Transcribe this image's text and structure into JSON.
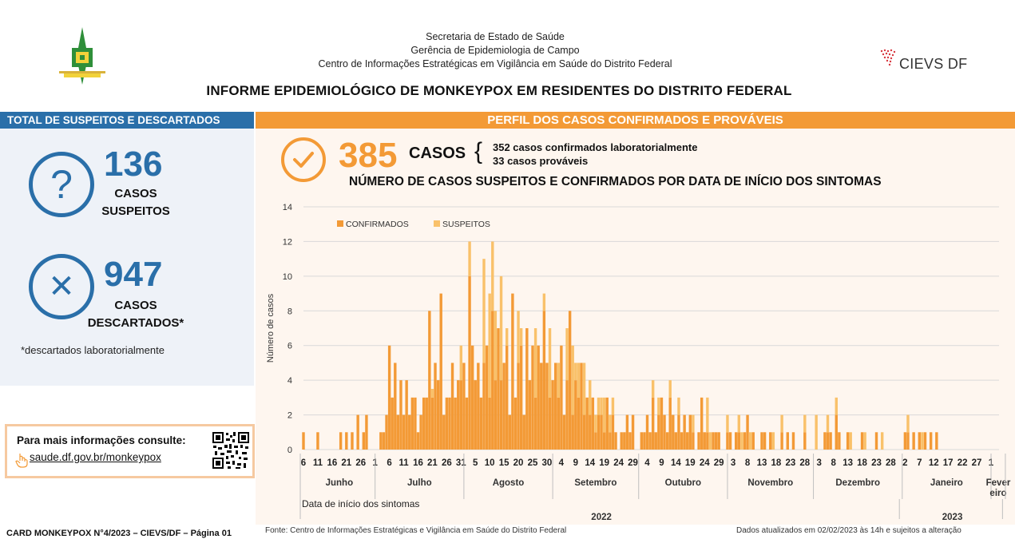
{
  "header": {
    "line1": "Secretaria de Estado de Saúde",
    "line2": "Gerência de Epidemiologia de Campo",
    "line3": "Centro de Informações Estratégicas em Vigilância em Saúde do Distrito Federal",
    "title": "INFORME EPIDEMIOLÓGICO DE MONKEYPOX EM RESIDENTES DO DISTRITO FEDERAL",
    "cievs_logo_text": "CIEVS DF"
  },
  "left": {
    "bar_title": "TOTAL DE SUSPEITOS E DESCARTADOS",
    "suspects_num": "136",
    "suspects_label1": "CASOS",
    "suspects_label2": "SUSPEITOS",
    "discarded_num": "947",
    "discarded_label1": "CASOS",
    "discarded_label2": "DESCARTADOS*",
    "footnote": "*descartados laboratorialmente",
    "question_glyph": "?",
    "x_glyph": "✕",
    "icons": [
      "question-circle-icon",
      "x-circle-icon",
      "hand-pointer-icon",
      "qr-code-icon"
    ]
  },
  "info": {
    "title": "Para mais informações consulte:",
    "link": "saude.df.gov.br/monkeypox"
  },
  "right": {
    "bar_title": "PERFIL DOS CASOS CONFIRMADOS E PROVÁVEIS",
    "cases_num": "385",
    "cases_word": "CASOS",
    "brace": "{",
    "line_confirmed": "352 casos confirmados laboratorialmente",
    "line_probable": "33 casos prováveis",
    "chart_title": "NÚMERO DE CASOS SUSPEITOS E CONFIRMADOS POR DATA DE INÍCIO DOS SINTOMAS"
  },
  "colors": {
    "blue": "#2a6fa9",
    "orange": "#f39a36",
    "confirmed": "#f39a36",
    "suspected": "#f9c16a"
  },
  "footer": {
    "left": "CARD MONKEYPOX N°4/2023 – CIEVS/DF – Página 01",
    "mid": "Fonte: Centro de Informações Estratégicas e Vigilância em Saúde do Distrito Federal",
    "right": "Dados atualizados em 02/02/2023 às 14h e sujeitos a alteração"
  },
  "chart_data": {
    "type": "bar",
    "stacked": true,
    "title": "NÚMERO DE CASOS SUSPEITOS E CONFIRMADOS POR DATA DE INÍCIO DOS SINTOMAS",
    "xlabel": "Data de início dos sintomas",
    "ylabel": "Número de casos",
    "ylim": [
      0,
      14
    ],
    "yticks": [
      0,
      2,
      4,
      6,
      8,
      10,
      12,
      14
    ],
    "grid": true,
    "legend_position": "top-left",
    "x_start": "2022-06-06",
    "x_end": "2023-02-01",
    "series": [
      {
        "name": "CONFIRMADOS",
        "color": "#f39a36",
        "points": [
          [
            "2022-06-06",
            1
          ],
          [
            "2022-06-11",
            1
          ],
          [
            "2022-06-19",
            1
          ],
          [
            "2022-06-21",
            1
          ],
          [
            "2022-06-23",
            1
          ],
          [
            "2022-06-25",
            2
          ],
          [
            "2022-06-27",
            1
          ],
          [
            "2022-06-28",
            2
          ],
          [
            "2022-07-03",
            1
          ],
          [
            "2022-07-04",
            1
          ],
          [
            "2022-07-05",
            2
          ],
          [
            "2022-07-06",
            6
          ],
          [
            "2022-07-07",
            3
          ],
          [
            "2022-07-08",
            5
          ],
          [
            "2022-07-09",
            2
          ],
          [
            "2022-07-10",
            4
          ],
          [
            "2022-07-11",
            2
          ],
          [
            "2022-07-12",
            4
          ],
          [
            "2022-07-13",
            2
          ],
          [
            "2022-07-14",
            3
          ],
          [
            "2022-07-15",
            3
          ],
          [
            "2022-07-16",
            1
          ],
          [
            "2022-07-17",
            2
          ],
          [
            "2022-07-18",
            3
          ],
          [
            "2022-07-19",
            3
          ],
          [
            "2022-07-20",
            8
          ],
          [
            "2022-07-21",
            3
          ],
          [
            "2022-07-22",
            5
          ],
          [
            "2022-07-23",
            4
          ],
          [
            "2022-07-24",
            9
          ],
          [
            "2022-07-25",
            2
          ],
          [
            "2022-07-26",
            3
          ],
          [
            "2022-07-27",
            3
          ],
          [
            "2022-07-28",
            5
          ],
          [
            "2022-07-29",
            3
          ],
          [
            "2022-07-30",
            4
          ],
          [
            "2022-07-31",
            4
          ],
          [
            "2022-08-01",
            5
          ],
          [
            "2022-08-02",
            3
          ],
          [
            "2022-08-03",
            10
          ],
          [
            "2022-08-04",
            6
          ],
          [
            "2022-08-05",
            4
          ],
          [
            "2022-08-06",
            5
          ],
          [
            "2022-08-07",
            3
          ],
          [
            "2022-08-08",
            5
          ],
          [
            "2022-08-09",
            6
          ],
          [
            "2022-08-10",
            3
          ],
          [
            "2022-08-11",
            8
          ],
          [
            "2022-08-12",
            4
          ],
          [
            "2022-08-13",
            7
          ],
          [
            "2022-08-14",
            4
          ],
          [
            "2022-08-15",
            5
          ],
          [
            "2022-08-16",
            6
          ],
          [
            "2022-08-17",
            2
          ],
          [
            "2022-08-18",
            9
          ],
          [
            "2022-08-19",
            3
          ],
          [
            "2022-08-20",
            5
          ],
          [
            "2022-08-21",
            6
          ],
          [
            "2022-08-22",
            2
          ],
          [
            "2022-08-23",
            7
          ],
          [
            "2022-08-24",
            4
          ],
          [
            "2022-08-25",
            6
          ],
          [
            "2022-08-26",
            3
          ],
          [
            "2022-08-27",
            6
          ],
          [
            "2022-08-28",
            5
          ],
          [
            "2022-08-29",
            8
          ],
          [
            "2022-08-30",
            5
          ],
          [
            "2022-08-31",
            3
          ],
          [
            "2022-09-01",
            4
          ],
          [
            "2022-09-02",
            5
          ],
          [
            "2022-09-03",
            3
          ],
          [
            "2022-09-04",
            6
          ],
          [
            "2022-09-05",
            2
          ],
          [
            "2022-09-06",
            4
          ],
          [
            "2022-09-07",
            8
          ],
          [
            "2022-09-08",
            2
          ],
          [
            "2022-09-09",
            4
          ],
          [
            "2022-09-10",
            3
          ],
          [
            "2022-09-11",
            5
          ],
          [
            "2022-09-12",
            2
          ],
          [
            "2022-09-13",
            3
          ],
          [
            "2022-09-14",
            2
          ],
          [
            "2022-09-15",
            3
          ],
          [
            "2022-09-16",
            1
          ],
          [
            "2022-09-17",
            2
          ],
          [
            "2022-09-18",
            2
          ],
          [
            "2022-09-19",
            1
          ],
          [
            "2022-09-20",
            3
          ],
          [
            "2022-09-21",
            1
          ],
          [
            "2022-09-22",
            2
          ],
          [
            "2022-09-23",
            1
          ],
          [
            "2022-09-25",
            1
          ],
          [
            "2022-09-26",
            1
          ],
          [
            "2022-09-27",
            2
          ],
          [
            "2022-09-28",
            1
          ],
          [
            "2022-09-29",
            2
          ],
          [
            "2022-10-02",
            1
          ],
          [
            "2022-10-03",
            1
          ],
          [
            "2022-10-04",
            2
          ],
          [
            "2022-10-05",
            1
          ],
          [
            "2022-10-06",
            3
          ],
          [
            "2022-10-07",
            1
          ],
          [
            "2022-10-08",
            2
          ],
          [
            "2022-10-09",
            3
          ],
          [
            "2022-10-10",
            2
          ],
          [
            "2022-10-11",
            1
          ],
          [
            "2022-10-12",
            3
          ],
          [
            "2022-10-13",
            2
          ],
          [
            "2022-10-14",
            1
          ],
          [
            "2022-10-15",
            2
          ],
          [
            "2022-10-16",
            1
          ],
          [
            "2022-10-17",
            2
          ],
          [
            "2022-10-18",
            1
          ],
          [
            "2022-10-19",
            2
          ],
          [
            "2022-10-20",
            1
          ],
          [
            "2022-10-22",
            1
          ],
          [
            "2022-10-23",
            3
          ],
          [
            "2022-10-24",
            1
          ],
          [
            "2022-10-25",
            1
          ],
          [
            "2022-10-27",
            1
          ],
          [
            "2022-10-28",
            1
          ],
          [
            "2022-10-29",
            1
          ],
          [
            "2022-11-01",
            1
          ],
          [
            "2022-11-02",
            1
          ],
          [
            "2022-11-04",
            1
          ],
          [
            "2022-11-05",
            1
          ],
          [
            "2022-11-07",
            1
          ],
          [
            "2022-11-08",
            2
          ],
          [
            "2022-11-10",
            1
          ],
          [
            "2022-11-13",
            1
          ],
          [
            "2022-11-14",
            1
          ],
          [
            "2022-11-16",
            1
          ],
          [
            "2022-11-20",
            1
          ],
          [
            "2022-11-22",
            1
          ],
          [
            "2022-11-24",
            1
          ],
          [
            "2022-11-28",
            1
          ],
          [
            "2022-12-05",
            1
          ],
          [
            "2022-12-06",
            1
          ],
          [
            "2022-12-07",
            1
          ],
          [
            "2022-12-09",
            2
          ],
          [
            "2022-12-10",
            1
          ],
          [
            "2022-12-13",
            1
          ],
          [
            "2022-12-18",
            1
          ],
          [
            "2022-12-23",
            1
          ],
          [
            "2023-01-02",
            1
          ],
          [
            "2023-01-03",
            1
          ],
          [
            "2023-01-05",
            1
          ],
          [
            "2023-01-07",
            1
          ],
          [
            "2023-01-09",
            1
          ],
          [
            "2023-01-11",
            1
          ],
          [
            "2023-01-13",
            1
          ]
        ]
      },
      {
        "name": "SUSPEITOS",
        "color": "#f9c16a",
        "points": [
          [
            "2022-07-21",
            0.5
          ],
          [
            "2022-07-31",
            2
          ],
          [
            "2022-08-03",
            2
          ],
          [
            "2022-08-08",
            6
          ],
          [
            "2022-08-10",
            6
          ],
          [
            "2022-08-11",
            4
          ],
          [
            "2022-08-12",
            4
          ],
          [
            "2022-08-14",
            6
          ],
          [
            "2022-08-16",
            1
          ],
          [
            "2022-08-20",
            3
          ],
          [
            "2022-08-21",
            1
          ],
          [
            "2022-08-26",
            4
          ],
          [
            "2022-08-29",
            1
          ],
          [
            "2022-08-31",
            4
          ],
          [
            "2022-09-03",
            2
          ],
          [
            "2022-09-06",
            3
          ],
          [
            "2022-09-08",
            4
          ],
          [
            "2022-09-09",
            1
          ],
          [
            "2022-09-10",
            2
          ],
          [
            "2022-09-11",
            0
          ],
          [
            "2022-09-12",
            3
          ],
          [
            "2022-09-14",
            2
          ],
          [
            "2022-09-16",
            1
          ],
          [
            "2022-09-17",
            1
          ],
          [
            "2022-09-18",
            1
          ],
          [
            "2022-09-19",
            2
          ],
          [
            "2022-09-21",
            1
          ],
          [
            "2022-09-22",
            1
          ],
          [
            "2022-10-06",
            1
          ],
          [
            "2022-10-08",
            1
          ],
          [
            "2022-10-12",
            1
          ],
          [
            "2022-10-15",
            1
          ],
          [
            "2022-10-20",
            1
          ],
          [
            "2022-10-25",
            2
          ],
          [
            "2022-10-26",
            1
          ],
          [
            "2022-11-01",
            1
          ],
          [
            "2022-11-05",
            1
          ],
          [
            "2022-11-06",
            1
          ],
          [
            "2022-11-09",
            1
          ],
          [
            "2022-11-17",
            1
          ],
          [
            "2022-11-20",
            1
          ],
          [
            "2022-11-28",
            1
          ],
          [
            "2022-12-02",
            2
          ],
          [
            "2022-12-06",
            1
          ],
          [
            "2022-12-09",
            1
          ],
          [
            "2022-12-14",
            1
          ],
          [
            "2022-12-19",
            1
          ],
          [
            "2022-12-25",
            1
          ],
          [
            "2023-01-03",
            1
          ],
          [
            "2023-01-08",
            1
          ]
        ]
      }
    ],
    "x_day_labels": [
      "6",
      "11",
      "16",
      "21",
      "26",
      "1",
      "6",
      "11",
      "16",
      "21",
      "26",
      "31",
      "5",
      "10",
      "15",
      "20",
      "25",
      "30",
      "4",
      "9",
      "14",
      "19",
      "24",
      "29",
      "4",
      "9",
      "14",
      "19",
      "24",
      "29",
      "3",
      "8",
      "13",
      "18",
      "23",
      "28",
      "3",
      "8",
      "13",
      "18",
      "23",
      "28",
      "2",
      "7",
      "12",
      "17",
      "22",
      "27",
      "1"
    ],
    "x_day_dates": [
      "2022-06-06",
      "2022-06-11",
      "2022-06-16",
      "2022-06-21",
      "2022-06-26",
      "2022-07-01",
      "2022-07-06",
      "2022-07-11",
      "2022-07-16",
      "2022-07-21",
      "2022-07-26",
      "2022-07-31",
      "2022-08-05",
      "2022-08-10",
      "2022-08-15",
      "2022-08-20",
      "2022-08-25",
      "2022-08-30",
      "2022-09-04",
      "2022-09-09",
      "2022-09-14",
      "2022-09-19",
      "2022-09-24",
      "2022-09-29",
      "2022-10-04",
      "2022-10-09",
      "2022-10-14",
      "2022-10-19",
      "2022-10-24",
      "2022-10-29",
      "2022-11-03",
      "2022-11-08",
      "2022-11-13",
      "2022-11-18",
      "2022-11-23",
      "2022-11-28",
      "2022-12-03",
      "2022-12-08",
      "2022-12-13",
      "2022-12-18",
      "2022-12-23",
      "2022-12-28",
      "2023-01-02",
      "2023-01-07",
      "2023-01-12",
      "2023-01-17",
      "2023-01-22",
      "2023-01-27",
      "2023-02-01"
    ],
    "months": [
      {
        "label": "Junho",
        "start": "2022-06-06",
        "end": "2022-06-30"
      },
      {
        "label": "Julho",
        "start": "2022-07-01",
        "end": "2022-07-31"
      },
      {
        "label": "Agosto",
        "start": "2022-08-01",
        "end": "2022-08-31"
      },
      {
        "label": "Setembro",
        "start": "2022-09-01",
        "end": "2022-09-30"
      },
      {
        "label": "Outubro",
        "start": "2022-10-01",
        "end": "2022-10-31"
      },
      {
        "label": "Novembro",
        "start": "2022-11-01",
        "end": "2022-11-30"
      },
      {
        "label": "Dezembro",
        "start": "2022-12-01",
        "end": "2022-12-31"
      },
      {
        "label": "Janeiro",
        "start": "2023-01-01",
        "end": "2023-01-31"
      },
      {
        "label": "Fever eiro",
        "start": "2023-02-01",
        "end": "2023-02-05"
      }
    ],
    "years": [
      {
        "label": "2022",
        "start": "2022-06-06",
        "end": "2022-12-31"
      },
      {
        "label": "2023",
        "start": "2023-01-01",
        "end": "2023-02-05"
      }
    ]
  }
}
